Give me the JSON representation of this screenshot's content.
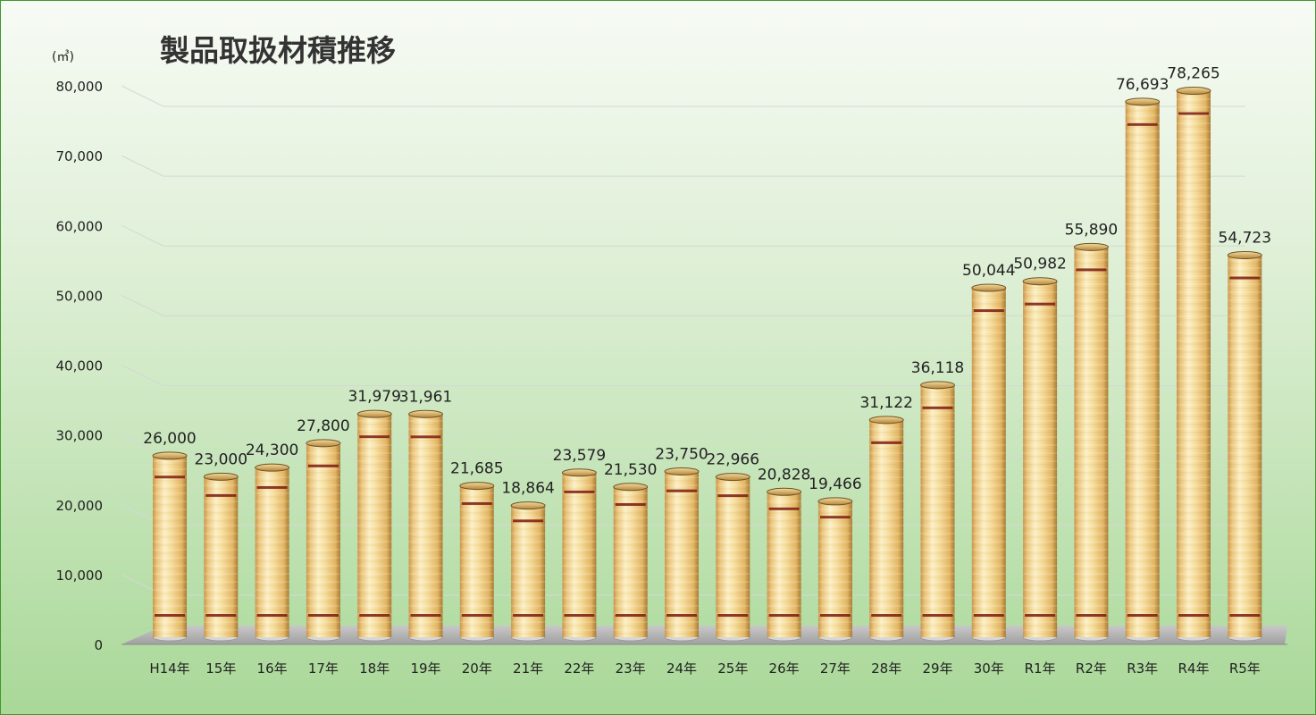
{
  "chart_data": {
    "type": "bar",
    "title": "製品取扱材積推移",
    "unit_label": "(㎥)",
    "categories": [
      "H14年",
      "15年",
      "16年",
      "17年",
      "18年",
      "19年",
      "20年",
      "21年",
      "22年",
      "23年",
      "24年",
      "25年",
      "26年",
      "27年",
      "28年",
      "29年",
      "30年",
      "R1年",
      "R2年",
      "R3年",
      "R4年",
      "R5年"
    ],
    "values": [
      26000,
      23000,
      24300,
      27800,
      31979,
      31961,
      21685,
      18864,
      23579,
      21530,
      23750,
      22966,
      20828,
      19466,
      31122,
      36118,
      50044,
      50982,
      55890,
      76693,
      78265,
      54723
    ],
    "value_labels": [
      "26,000",
      "23,000",
      "24,300",
      "27,800",
      "31,979",
      "31,961",
      "21,685",
      "18,864",
      "23,579",
      "21,530",
      "23,750",
      "22,966",
      "20,828",
      "19,466",
      "31,122",
      "36,118",
      "50,044",
      "50,982",
      "55,890",
      "76,693",
      "78,265",
      "54,723"
    ],
    "y_ticks": [
      "0",
      "10,000",
      "20,000",
      "30,000",
      "40,000",
      "50,000",
      "60,000",
      "70,000",
      "80,000"
    ],
    "ylim": [
      0,
      80000
    ],
    "grid": true,
    "legend": "none",
    "colors": {
      "background_top": "#f7fbf5",
      "background_bottom": "#a9d898",
      "border": "#3f9a2c",
      "floor": "#b4b4b4",
      "bar_light": "#fbefc4",
      "bar_mid": "#efcf86",
      "bar_dark": "#a77a33",
      "band": "#7a1a10"
    }
  }
}
